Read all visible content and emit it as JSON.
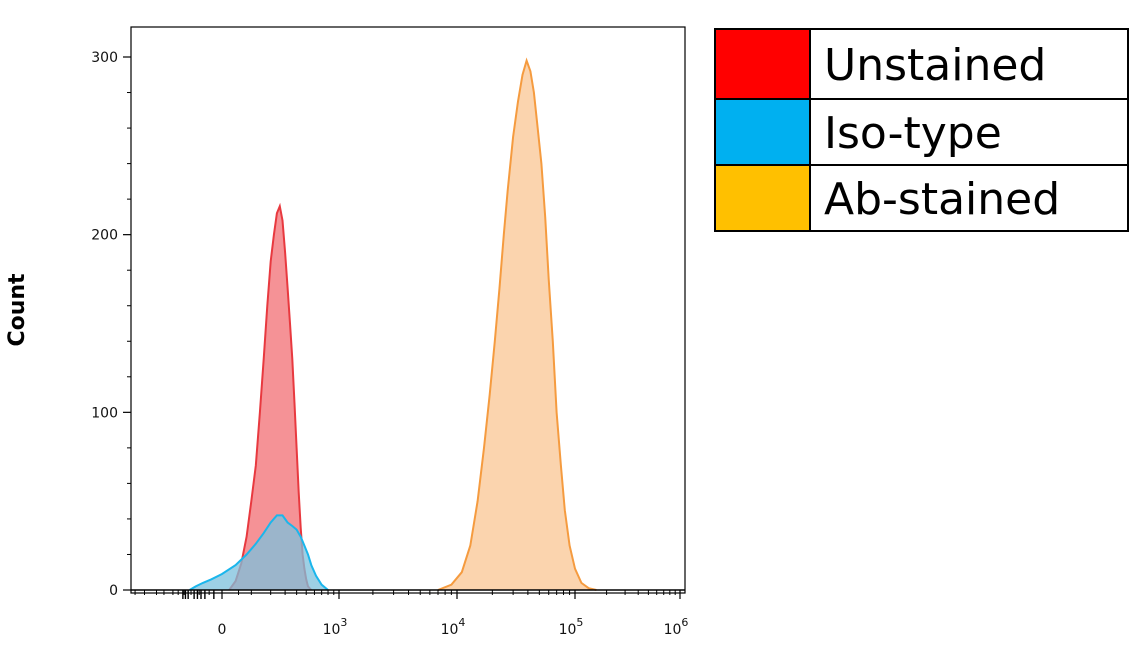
{
  "chart_data": {
    "type": "area",
    "title": "",
    "xlabel": "",
    "ylabel": "Count",
    "xscale": "biexponential",
    "ylim": [
      0,
      320
    ],
    "yticks": [
      0,
      100,
      200,
      300
    ],
    "xticks": [
      {
        "value": 0,
        "label": "0",
        "exp": ""
      },
      {
        "value": 1000,
        "label": "10",
        "exp": "3"
      },
      {
        "value": 10000,
        "label": "10",
        "exp": "4"
      },
      {
        "value": 100000,
        "label": "10",
        "exp": "5"
      },
      {
        "value": 1000000,
        "label": "10",
        "exp": "6"
      }
    ],
    "grid": false,
    "legend_position": "top-right",
    "series": [
      {
        "name": "Unstained",
        "color": "#ff0000",
        "line": "#e8393f",
        "fill": "#f4868b",
        "x": [
          20,
          40,
          60,
          80,
          100,
          120,
          140,
          160,
          180,
          200,
          220,
          240,
          260,
          280,
          300,
          320,
          340,
          360,
          380,
          400,
          420,
          440,
          460,
          480,
          500,
          520,
          560
        ],
        "y": [
          0,
          5,
          15,
          30,
          50,
          70,
          100,
          130,
          160,
          185,
          200,
          212,
          216,
          208,
          190,
          170,
          150,
          130,
          105,
          80,
          55,
          35,
          20,
          12,
          6,
          2,
          0
        ]
      },
      {
        "name": "Iso-type",
        "color": "#00b0f0",
        "line": "#1ab6ec",
        "fill": "#7cc0dc",
        "x": [
          -160,
          -120,
          -80,
          -40,
          0,
          40,
          80,
          120,
          160,
          200,
          240,
          280,
          320,
          360,
          400,
          440,
          480,
          520,
          560,
          620,
          700,
          800
        ],
        "y": [
          0,
          2,
          4,
          6,
          9,
          14,
          20,
          26,
          32,
          38,
          42,
          42,
          38,
          36,
          34,
          30,
          25,
          20,
          14,
          8,
          3,
          0
        ]
      },
      {
        "name": "Ab-stained",
        "color": "#ffc000",
        "line": "#f59b3f",
        "fill": "#fbcfa5",
        "x": [
          7000,
          9000,
          11000,
          13000,
          15000,
          17000,
          19000,
          21000,
          23000,
          25000,
          27000,
          30000,
          33000,
          36000,
          39000,
          42000,
          45000,
          48000,
          52000,
          56000,
          60000,
          65000,
          70000,
          76000,
          82000,
          90000,
          100000,
          115000,
          135000,
          160000
        ],
        "y": [
          0,
          3,
          10,
          25,
          50,
          80,
          110,
          140,
          170,
          200,
          225,
          255,
          275,
          290,
          298,
          292,
          280,
          262,
          240,
          210,
          175,
          140,
          100,
          70,
          45,
          25,
          12,
          4,
          1,
          0
        ]
      }
    ]
  }
}
